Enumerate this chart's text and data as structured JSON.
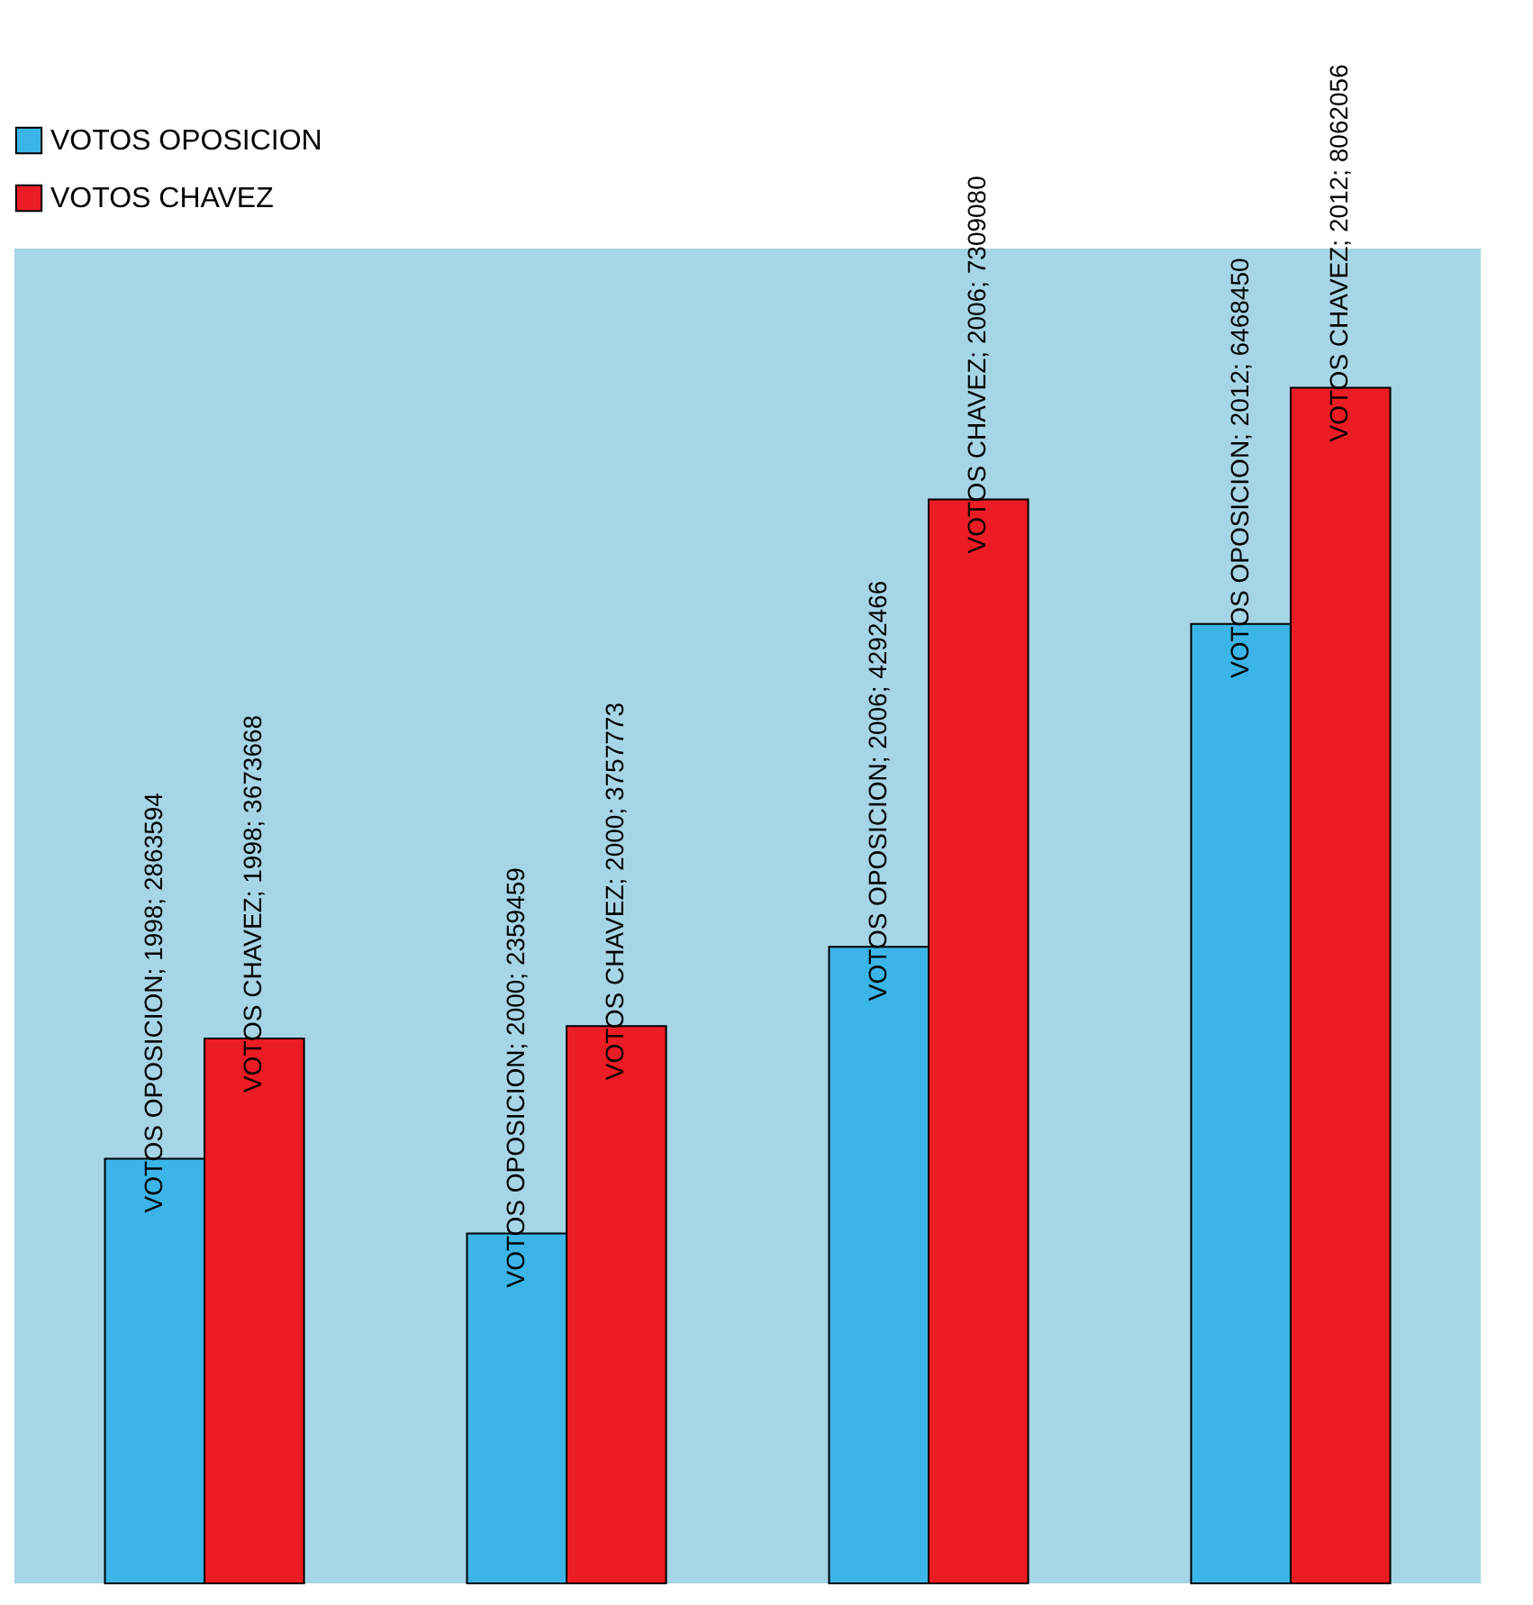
{
  "chart_data": {
    "type": "bar",
    "categories": [
      null,
      null,
      null,
      null
    ],
    "ylim": [
      0,
      9000000
    ],
    "legend": "top",
    "tick_labels": false,
    "series": [
      {
        "name": "VOTOS OPOSICION",
        "color": "#3bb5e8",
        "values": [
          2863594,
          2359459,
          4292466,
          6468450
        ],
        "value_labels": [
          "VOTOS OPOSICION; 1998; 2863594",
          "VOTOS OPOSICION; 2000; 2359459",
          "VOTOS OPOSICION; 2006; 4292466",
          "VOTOS OPOSICION; 2012; 6468450"
        ]
      },
      {
        "name": "VOTOS CHAVEZ",
        "color": "#ec1c24",
        "values": [
          3673668,
          3757773,
          7309080,
          8062056
        ],
        "value_labels": [
          "VOTOS CHAVEZ; 1998; 3673668",
          "VOTOS CHAVEZ; 2000; 3757773",
          "VOTOS CHAVEZ; 2006; 7309080",
          "VOTOS CHAVEZ; 2012; 8062056"
        ]
      }
    ]
  }
}
